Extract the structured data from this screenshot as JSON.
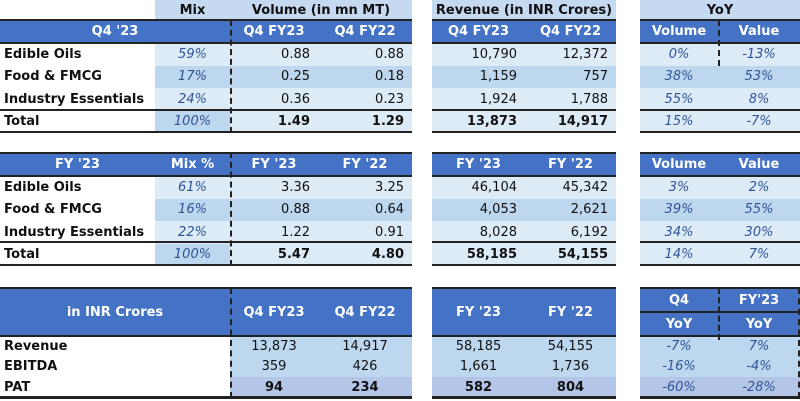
{
  "q4": {
    "title": "Q4 '23",
    "mix_header": "Mix",
    "volume_header": "Volume (in mn MT)",
    "revenue_header": "Revenue (in INR Crores)",
    "yoy_header": "YoY",
    "cols": [
      "Q4 FY23",
      "Q4 FY22",
      "Q4 FY23",
      "Q4 FY22",
      "Volume",
      "Value"
    ],
    "rows": [
      {
        "label": "Edible Oils",
        "mix": "59%",
        "v1": "0.88",
        "v2": "0.88",
        "r1": "10,790",
        "r2": "12,372",
        "y1": "0%",
        "y2": "-13%"
      },
      {
        "label": "Food & FMCG",
        "mix": "17%",
        "v1": "0.25",
        "v2": "0.18",
        "r1": "1,159",
        "r2": "757",
        "y1": "38%",
        "y2": "53%"
      },
      {
        "label": "Industry Essentials",
        "mix": "24%",
        "v1": "0.36",
        "v2": "0.23",
        "r1": "1,924",
        "r2": "1,788",
        "y1": "55%",
        "y2": "8%"
      },
      {
        "label": "Total",
        "mix": "100%",
        "v1": "1.49",
        "v2": "1.29",
        "r1": "13,873",
        "r2": "14,917",
        "y1": "15%",
        "y2": "-7%"
      }
    ]
  },
  "fy": {
    "title": "FY '23",
    "cols": [
      "Mix %",
      "FY '23",
      "FY '22",
      "FY '23",
      "FY '22",
      "Volume",
      "Value"
    ],
    "rows": [
      {
        "label": "Edible Oils",
        "mix": "61%",
        "v1": "3.36",
        "v2": "3.25",
        "r1": "46,104",
        "r2": "45,342",
        "y1": "3%",
        "y2": "2%"
      },
      {
        "label": "Food & FMCG",
        "mix": "16%",
        "v1": "0.88",
        "v2": "0.64",
        "r1": "4,053",
        "r2": "2,621",
        "y1": "39%",
        "y2": "55%"
      },
      {
        "label": "Industry Essentials",
        "mix": "22%",
        "v1": "1.22",
        "v2": "0.91",
        "r1": "8,028",
        "r2": "6,192",
        "y1": "34%",
        "y2": "30%"
      },
      {
        "label": "Total",
        "mix": "100%",
        "v1": "5.47",
        "v2": "4.80",
        "r1": "58,185",
        "r2": "54,155",
        "y1": "14%",
        "y2": "7%"
      }
    ]
  },
  "fin": {
    "title": "in INR Crores",
    "cols": [
      "Q4 FY23",
      "Q4 FY22",
      "FY '23",
      "FY '22"
    ],
    "yoy_top": [
      "Q4",
      "FY'23"
    ],
    "yoy_sub": [
      "YoY",
      "YoY"
    ],
    "rows": [
      {
        "label": "Revenue",
        "v1": "13,873",
        "v2": "14,917",
        "r1": "58,185",
        "r2": "54,155",
        "y1": "-7%",
        "y2": "7%"
      },
      {
        "label": "EBITDA",
        "v1": "359",
        "v2": "426",
        "r1": "1,661",
        "r2": "1,736",
        "y1": "-16%",
        "y2": "-4%"
      },
      {
        "label": "PAT",
        "v1": "94",
        "v2": "234",
        "r1": "582",
        "r2": "804",
        "y1": "-60%",
        "y2": "-28%"
      }
    ]
  }
}
